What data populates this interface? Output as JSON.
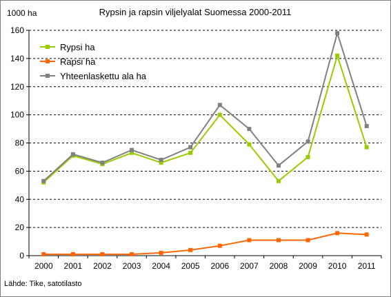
{
  "chart_data": {
    "type": "line",
    "title": "Rypsin ja rapsin viljelyalat Suomessa 2000-2011",
    "ylabel": "1000 ha",
    "xlabel": "",
    "source": "Lähde: Tike, satotilasto",
    "x": [
      "2000",
      "2001",
      "2002",
      "2003",
      "2004",
      "2005",
      "2006",
      "2007",
      "2008",
      "2009",
      "2010",
      "2011"
    ],
    "y_ticks": [
      "0",
      "20",
      "40",
      "60",
      "80",
      "100",
      "120",
      "140",
      "160"
    ],
    "ylim": [
      0,
      160
    ],
    "grid": "horizontal dashed",
    "legend_position": "top-left",
    "series": [
      {
        "name": "Rypsi ha",
        "color": "#99cc00",
        "values": [
          52,
          71,
          65,
          73,
          66,
          73,
          100,
          79,
          53,
          70,
          142,
          77
        ]
      },
      {
        "name": "Rapsi ha",
        "color": "#ff6600",
        "values": [
          1,
          1,
          1,
          1,
          2,
          4,
          7,
          11,
          11,
          11,
          16,
          15
        ]
      },
      {
        "name": "Yhteenlaskettu ala ha",
        "color": "#808080",
        "values": [
          53,
          72,
          66,
          75,
          68,
          77,
          107,
          90,
          64,
          81,
          158,
          92
        ]
      }
    ]
  }
}
